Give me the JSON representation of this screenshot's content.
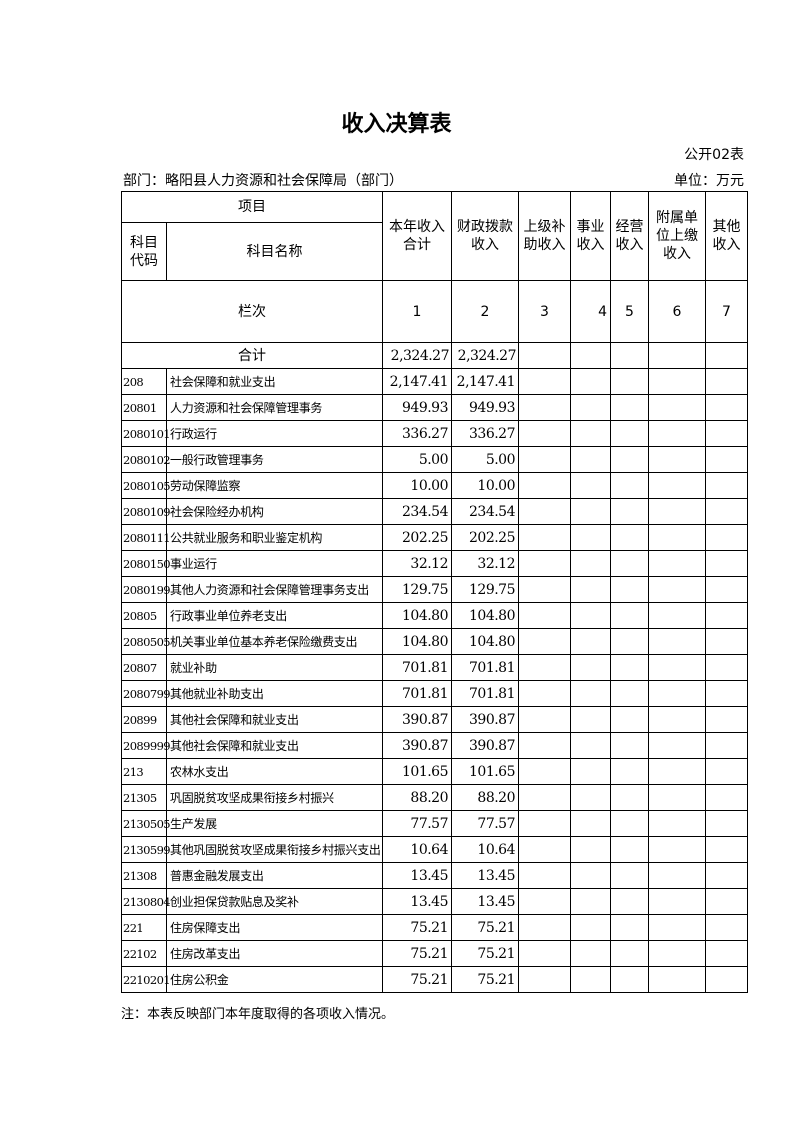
{
  "title": "收入决算表",
  "form_code": "公开02表",
  "department": "部门：略阳县人力资源和社会保障局（部门）",
  "unit": "单位：万元",
  "headers": {
    "item": "项目",
    "subject_code": "科目代码",
    "subject_name": "科目名称",
    "cols": [
      "本年收入合计",
      "财政拨款收入",
      "上级补助收入",
      "事业收入",
      "经营收入",
      "附属单位上缴收入",
      "其他收入"
    ],
    "row_index_label": "栏次",
    "row_index": [
      "1",
      "2",
      "3",
      "4",
      "5",
      "6",
      "7"
    ]
  },
  "total": {
    "label": "合计",
    "values": [
      "2,324.27",
      "2,324.27"
    ]
  },
  "rows": [
    {
      "code": "208",
      "name": "社会保障和就业支出",
      "total": "2,147.41",
      "fiscal": "2,147.41"
    },
    {
      "code": "20801",
      "name": "人力资源和社会保障管理事务",
      "total": "949.93",
      "fiscal": "949.93"
    },
    {
      "code": "2080101",
      "name": "行政运行",
      "total": "336.27",
      "fiscal": "336.27"
    },
    {
      "code": "2080102",
      "name": "一般行政管理事务",
      "total": "5.00",
      "fiscal": "5.00"
    },
    {
      "code": "2080105",
      "name": "劳动保障监察",
      "total": "10.00",
      "fiscal": "10.00"
    },
    {
      "code": "2080109",
      "name": "社会保险经办机构",
      "total": "234.54",
      "fiscal": "234.54"
    },
    {
      "code": "2080111",
      "name": "公共就业服务和职业鉴定机构",
      "total": "202.25",
      "fiscal": "202.25"
    },
    {
      "code": "2080150",
      "name": "事业运行",
      "total": "32.12",
      "fiscal": "32.12"
    },
    {
      "code": "2080199",
      "name": "其他人力资源和社会保障管理事务支出",
      "total": "129.75",
      "fiscal": "129.75"
    },
    {
      "code": "20805",
      "name": "行政事业单位养老支出",
      "total": "104.80",
      "fiscal": "104.80"
    },
    {
      "code": "2080505",
      "name": "机关事业单位基本养老保险缴费支出",
      "total": "104.80",
      "fiscal": "104.80"
    },
    {
      "code": "20807",
      "name": "就业补助",
      "total": "701.81",
      "fiscal": "701.81"
    },
    {
      "code": "2080799",
      "name": "其他就业补助支出",
      "total": "701.81",
      "fiscal": "701.81"
    },
    {
      "code": "20899",
      "name": "其他社会保障和就业支出",
      "total": "390.87",
      "fiscal": "390.87"
    },
    {
      "code": "2089999",
      "name": "其他社会保障和就业支出",
      "total": "390.87",
      "fiscal": "390.87"
    },
    {
      "code": "213",
      "name": "农林水支出",
      "total": "101.65",
      "fiscal": "101.65"
    },
    {
      "code": "21305",
      "name": "巩固脱贫攻坚成果衔接乡村振兴",
      "total": "88.20",
      "fiscal": "88.20"
    },
    {
      "code": "2130505",
      "name": "生产发展",
      "total": "77.57",
      "fiscal": "77.57"
    },
    {
      "code": "2130599",
      "name": "其他巩固脱贫攻坚成果衔接乡村振兴支出",
      "total": "10.64",
      "fiscal": "10.64"
    },
    {
      "code": "21308",
      "name": "普惠金融发展支出",
      "total": "13.45",
      "fiscal": "13.45"
    },
    {
      "code": "2130804",
      "name": "创业担保贷款贴息及奖补",
      "total": "13.45",
      "fiscal": "13.45"
    },
    {
      "code": "221",
      "name": "住房保障支出",
      "total": "75.21",
      "fiscal": "75.21"
    },
    {
      "code": "22102",
      "name": "住房改革支出",
      "total": "75.21",
      "fiscal": "75.21"
    },
    {
      "code": "2210201",
      "name": "住房公积金",
      "total": "75.21",
      "fiscal": "75.21"
    }
  ],
  "note": "注：本表反映部门本年度取得的各项收入情况。"
}
